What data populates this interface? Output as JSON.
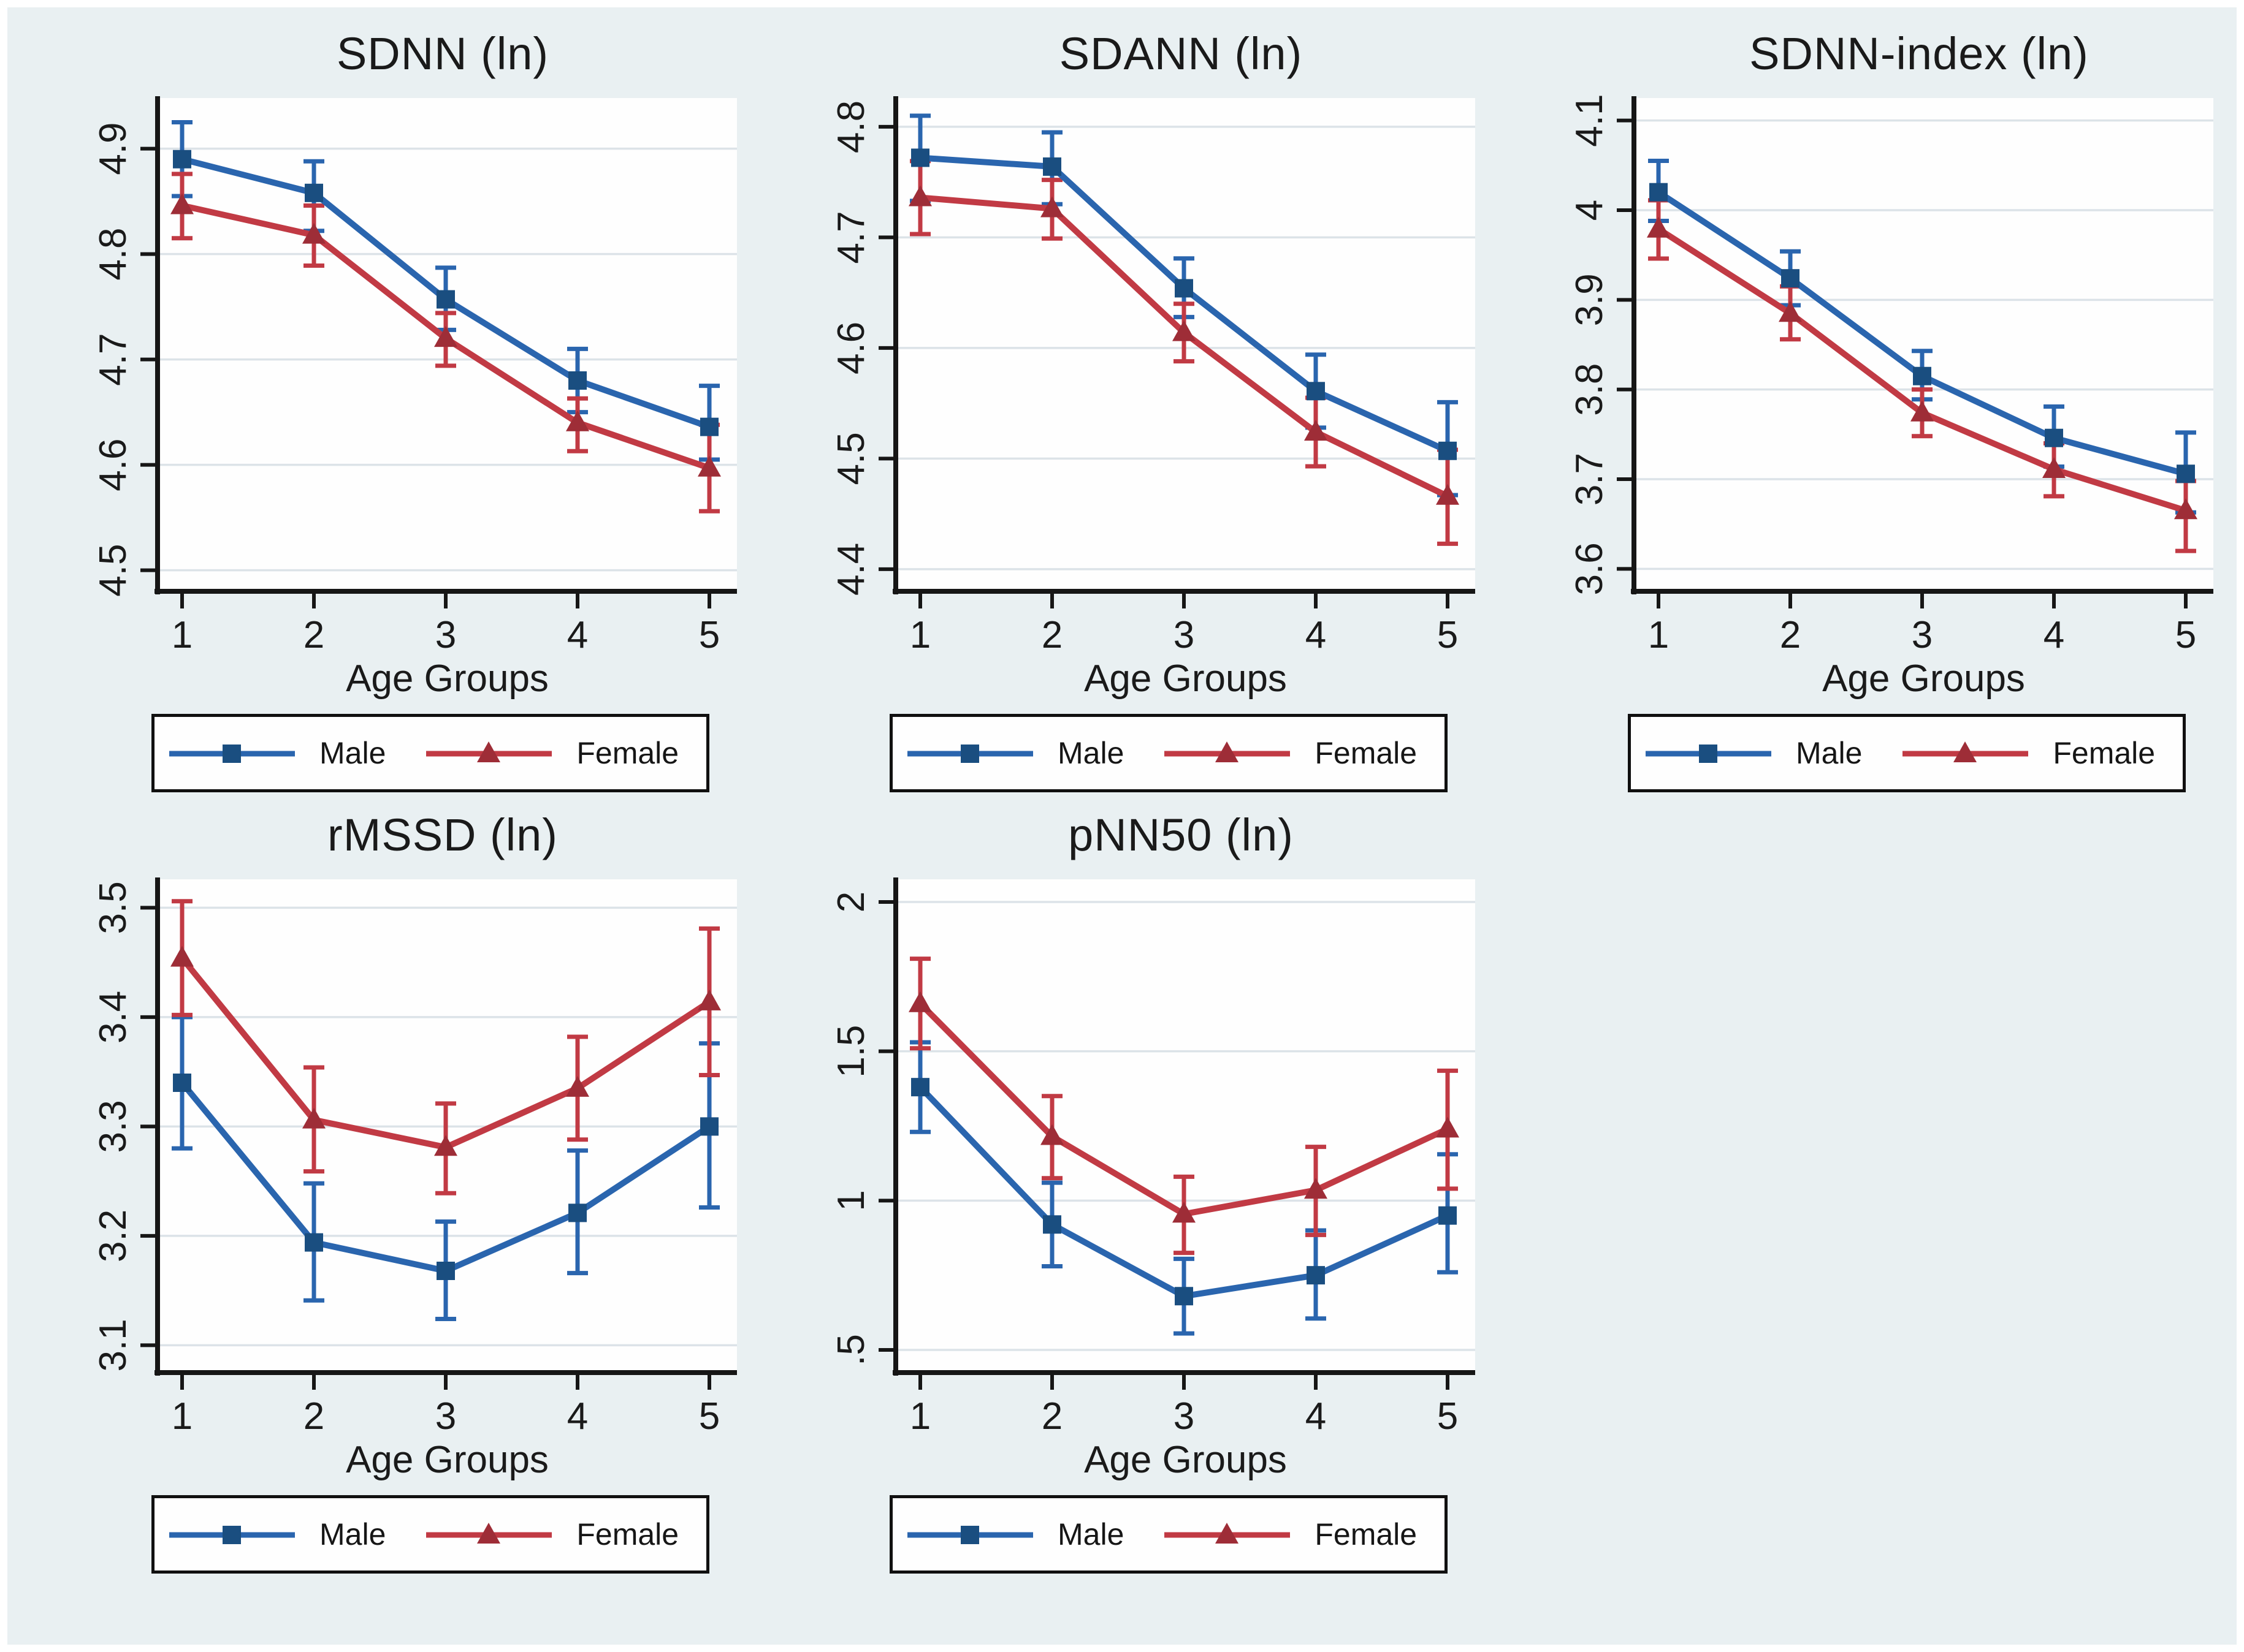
{
  "figure": {
    "colors": {
      "background": "#e9f0f2",
      "page_border": "#ffffff",
      "plot_bg": "#fefefe",
      "grid": "#dce3e8",
      "axis": "#161616",
      "text": "#1a1a1a",
      "legend_border": "#101010",
      "male_line": "#2a65ae",
      "male_marker": "#1a4e80",
      "female_line": "#c13a44",
      "female_marker": "#9e2d37"
    },
    "xlabel": "Age Groups",
    "categories": [
      "1",
      "2",
      "3",
      "4",
      "5"
    ],
    "legend": {
      "male_label": "Male",
      "female_label": "Female"
    }
  },
  "chart_data": [
    {
      "id": "sdnn",
      "type": "line",
      "title": "SDNN (ln)",
      "xlabel": "Age Groups",
      "categories": [
        "1",
        "2",
        "3",
        "4",
        "5"
      ],
      "ylim": [
        4.48,
        4.948
      ],
      "yticks": [
        {
          "v": 4.5,
          "label": "4.5"
        },
        {
          "v": 4.6,
          "label": "4.6"
        },
        {
          "v": 4.7,
          "label": "4.7"
        },
        {
          "v": 4.8,
          "label": "4.8"
        },
        {
          "v": 4.9,
          "label": "4.9"
        }
      ],
      "grid": true,
      "legend_position": "bottom",
      "series": [
        {
          "name": "Male",
          "marker": "square",
          "line_color": "#2a65ae",
          "marker_color": "#1a4e80",
          "values": [
            4.89,
            4.858,
            4.757,
            4.68,
            4.636
          ],
          "ci_low": [
            4.855,
            4.822,
            4.728,
            4.65,
            4.605
          ],
          "ci_high": [
            4.925,
            4.888,
            4.787,
            4.71,
            4.675
          ]
        },
        {
          "name": "Female",
          "marker": "triangle",
          "line_color": "#c13a44",
          "marker_color": "#9e2d37",
          "values": [
            4.846,
            4.818,
            4.72,
            4.64,
            4.597
          ],
          "ci_low": [
            4.815,
            4.789,
            4.694,
            4.613,
            4.556
          ],
          "ci_high": [
            4.876,
            4.846,
            4.744,
            4.663,
            4.638
          ]
        }
      ]
    },
    {
      "id": "sdann",
      "type": "line",
      "title": "SDANN (ln)",
      "xlabel": "Age Groups",
      "categories": [
        "1",
        "2",
        "3",
        "4",
        "5"
      ],
      "ylim": [
        4.38,
        4.826
      ],
      "yticks": [
        {
          "v": 4.4,
          "label": "4.4"
        },
        {
          "v": 4.5,
          "label": "4.5"
        },
        {
          "v": 4.6,
          "label": "4.6"
        },
        {
          "v": 4.7,
          "label": "4.7"
        },
        {
          "v": 4.8,
          "label": "4.8"
        }
      ],
      "grid": true,
      "legend_position": "bottom",
      "series": [
        {
          "name": "Male",
          "marker": "square",
          "line_color": "#2a65ae",
          "marker_color": "#1a4e80",
          "values": [
            4.772,
            4.764,
            4.654,
            4.561,
            4.507
          ],
          "ci_low": [
            4.733,
            4.73,
            4.628,
            4.528,
            4.467
          ],
          "ci_high": [
            4.81,
            4.795,
            4.681,
            4.594,
            4.551
          ]
        },
        {
          "name": "Female",
          "marker": "triangle",
          "line_color": "#c13a44",
          "marker_color": "#9e2d37",
          "values": [
            4.736,
            4.726,
            4.614,
            4.524,
            4.466
          ],
          "ci_low": [
            4.703,
            4.699,
            4.588,
            4.493,
            4.423
          ],
          "ci_high": [
            4.769,
            4.752,
            4.64,
            4.555,
            4.508
          ]
        }
      ]
    },
    {
      "id": "sdnn-index",
      "type": "line",
      "title": "SDNN-index (ln)",
      "xlabel": "Age Groups",
      "categories": [
        "1",
        "2",
        "3",
        "4",
        "5"
      ],
      "ylim": [
        3.575,
        4.125
      ],
      "yticks": [
        {
          "v": 3.6,
          "label": "3.6"
        },
        {
          "v": 3.7,
          "label": "3.7"
        },
        {
          "v": 3.8,
          "label": "3.8"
        },
        {
          "v": 3.9,
          "label": "3.9"
        },
        {
          "v": 4.0,
          "label": "4"
        },
        {
          "v": 4.1,
          "label": "4.1"
        }
      ],
      "grid": true,
      "legend_position": "bottom",
      "series": [
        {
          "name": "Male",
          "marker": "square",
          "line_color": "#2a65ae",
          "marker_color": "#1a4e80",
          "values": [
            4.02,
            3.924,
            3.815,
            3.746,
            3.706
          ],
          "ci_low": [
            3.988,
            3.894,
            3.789,
            3.714,
            3.663
          ],
          "ci_high": [
            4.055,
            3.954,
            3.843,
            3.781,
            3.752
          ]
        },
        {
          "name": "Female",
          "marker": "triangle",
          "line_color": "#c13a44",
          "marker_color": "#9e2d37",
          "values": [
            3.979,
            3.885,
            3.774,
            3.711,
            3.665
          ],
          "ci_low": [
            3.946,
            3.856,
            3.748,
            3.681,
            3.62
          ],
          "ci_high": [
            4.011,
            3.915,
            3.8,
            3.74,
            3.698
          ]
        }
      ]
    },
    {
      "id": "rmssd",
      "type": "line",
      "title": "rMSSD (ln)",
      "xlabel": "Age Groups",
      "categories": [
        "1",
        "2",
        "3",
        "4",
        "5"
      ],
      "ylim": [
        3.075,
        3.526
      ],
      "yticks": [
        {
          "v": 3.1,
          "label": "3.1"
        },
        {
          "v": 3.2,
          "label": "3.2"
        },
        {
          "v": 3.3,
          "label": "3.3"
        },
        {
          "v": 3.4,
          "label": "3.4"
        },
        {
          "v": 3.5,
          "label": "3.5"
        }
      ],
      "grid": true,
      "legend_position": "bottom",
      "series": [
        {
          "name": "Male",
          "marker": "square",
          "line_color": "#2a65ae",
          "marker_color": "#1a4e80",
          "values": [
            3.34,
            3.194,
            3.168,
            3.221,
            3.3
          ],
          "ci_low": [
            3.28,
            3.141,
            3.124,
            3.166,
            3.226
          ],
          "ci_high": [
            3.4,
            3.248,
            3.213,
            3.278,
            3.376
          ]
        },
        {
          "name": "Female",
          "marker": "triangle",
          "line_color": "#c13a44",
          "marker_color": "#9e2d37",
          "values": [
            3.454,
            3.306,
            3.281,
            3.335,
            3.414
          ],
          "ci_low": [
            3.402,
            3.259,
            3.239,
            3.288,
            3.347
          ],
          "ci_high": [
            3.506,
            3.354,
            3.321,
            3.382,
            3.481
          ]
        }
      ]
    },
    {
      "id": "pnn50",
      "type": "line",
      "title": "pNN50 (ln)",
      "xlabel": "Age Groups",
      "categories": [
        "1",
        "2",
        "3",
        "4",
        "5"
      ],
      "ylim": [
        0.424,
        2.076
      ],
      "yticks": [
        {
          "v": 0.5,
          "label": ".5"
        },
        {
          "v": 1.0,
          "label": "1"
        },
        {
          "v": 1.5,
          "label": "1.5"
        },
        {
          "v": 2.0,
          "label": "2"
        }
      ],
      "grid": true,
      "legend_position": "bottom",
      "series": [
        {
          "name": "Male",
          "marker": "square",
          "line_color": "#2a65ae",
          "marker_color": "#1a4e80",
          "values": [
            1.38,
            0.92,
            0.68,
            0.75,
            0.95
          ],
          "ci_low": [
            1.23,
            0.78,
            0.555,
            0.605,
            0.76
          ],
          "ci_high": [
            1.53,
            1.06,
            0.805,
            0.9,
            1.155
          ]
        },
        {
          "name": "Female",
          "marker": "triangle",
          "line_color": "#c13a44",
          "marker_color": "#9e2d37",
          "values": [
            1.66,
            1.215,
            0.955,
            1.035,
            1.24
          ],
          "ci_low": [
            1.51,
            1.075,
            0.825,
            0.885,
            1.04
          ],
          "ci_high": [
            1.81,
            1.35,
            1.08,
            1.18,
            1.435
          ]
        }
      ]
    }
  ]
}
